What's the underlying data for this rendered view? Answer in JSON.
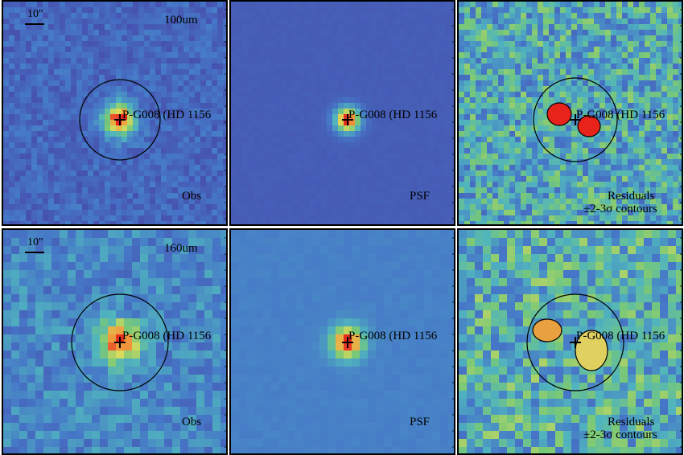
{
  "target_label": "P-G008 (HD 1156",
  "scale_label": "10\"",
  "rows": [
    {
      "band": "100um",
      "obs_label": "Obs",
      "psf_label": "PSF",
      "residual_label": "Residuals",
      "residual_sublabel": "±2-3σ contours"
    },
    {
      "band": "160um",
      "obs_label": "Obs",
      "psf_label": "PSF",
      "residual_label": "Residuals",
      "residual_sublabel": "±2-3σ contours"
    }
  ],
  "colors": {
    "obs_bg": "#6d79b8",
    "psf_bg": "#4a5aa8",
    "residual_bg": "#7fb7a3",
    "peak": "#e8231c",
    "contour": "#000000",
    "border": "#000000"
  }
}
